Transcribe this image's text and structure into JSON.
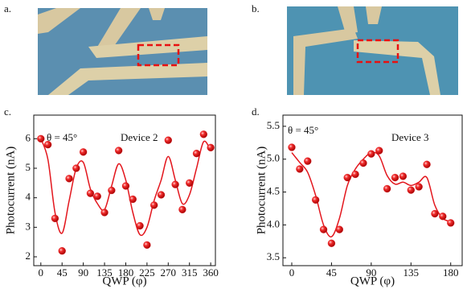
{
  "panel_labels": [
    "a.",
    "b.",
    "c.",
    "d."
  ],
  "chart_data": [
    {
      "type": "scatter",
      "xlabel": "QWP (φ)",
      "ylabel": "Photocurrent (nA)",
      "annotations": [
        "θ = 45°",
        "Device 2"
      ],
      "x": [
        0,
        15,
        30,
        45,
        60,
        75,
        90,
        105,
        120,
        135,
        150,
        165,
        180,
        195,
        210,
        225,
        240,
        255,
        270,
        285,
        300,
        315,
        330,
        345,
        360
      ],
      "series": [
        {
          "color": "#e3161d",
          "values": [
            6.0,
            5.8,
            3.3,
            2.2,
            4.65,
            5.0,
            5.55,
            4.15,
            4.05,
            3.5,
            4.25,
            5.6,
            4.4,
            3.95,
            3.05,
            2.4,
            3.75,
            4.1,
            5.95,
            4.45,
            3.6,
            4.5,
            5.5,
            6.15,
            5.7
          ]
        },
        {
          "type": "line",
          "color": "#e3161d",
          "values": [
            6.0,
            5.3,
            3.5,
            2.8,
            3.9,
            5.0,
            5.2,
            4.3,
            3.8,
            3.6,
            4.4,
            5.15,
            4.6,
            3.5,
            2.75,
            3.0,
            3.9,
            4.6,
            5.4,
            4.6,
            3.8,
            4.1,
            5.0,
            5.9,
            5.6
          ]
        }
      ],
      "xlim": [
        -15,
        370
      ],
      "ylim": [
        1.7,
        6.8
      ],
      "xticks": [
        0,
        45,
        90,
        135,
        180,
        225,
        270,
        315,
        360
      ],
      "yticks": [
        2,
        3,
        4,
        5,
        6
      ]
    },
    {
      "type": "scatter",
      "xlabel": "QWP (φ)",
      "ylabel": "Photocurrent (nA)",
      "annotations": [
        "θ = 45°",
        "Device 3"
      ],
      "x": [
        0,
        9,
        18,
        27,
        36,
        45,
        54,
        63,
        72,
        81,
        90,
        99,
        108,
        117,
        126,
        135,
        144,
        153,
        162,
        171,
        180
      ],
      "series": [
        {
          "color": "#e3161d",
          "values": [
            5.18,
            4.85,
            4.97,
            4.38,
            3.93,
            3.72,
            3.93,
            4.72,
            4.77,
            4.94,
            5.08,
            5.13,
            4.55,
            4.72,
            4.74,
            4.53,
            4.58,
            4.92,
            4.17,
            4.13,
            4.03
          ]
        },
        {
          "type": "line",
          "color": "#e3161d",
          "values": [
            5.1,
            4.95,
            4.8,
            4.45,
            4.0,
            3.82,
            4.1,
            4.6,
            4.85,
            5.0,
            5.1,
            5.05,
            4.75,
            4.62,
            4.65,
            4.6,
            4.65,
            4.72,
            4.3,
            4.1,
            4.05
          ]
        }
      ],
      "xlim": [
        -10,
        193
      ],
      "ylim": [
        3.38,
        5.67
      ],
      "xticks": [
        0,
        45,
        90,
        135,
        180
      ],
      "yticks": [
        3.5,
        {
          "value": 4.0,
          "label": "4.0"
        },
        4.5,
        {
          "value": 5.0,
          "label": "5.0"
        },
        5.5
      ]
    }
  ]
}
